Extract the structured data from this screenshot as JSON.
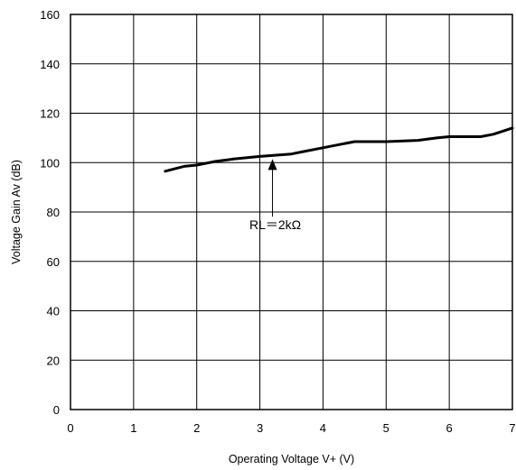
{
  "chart_data": {
    "type": "line",
    "title": "",
    "xlabel": "Operating Voltage  V+ (V)",
    "ylabel": "Voltage Gain  Av  (dB)",
    "xlim": [
      0,
      7
    ],
    "ylim": [
      0,
      160
    ],
    "x_ticks": [
      0,
      1,
      2,
      3,
      4,
      5,
      6,
      7
    ],
    "y_ticks": [
      0,
      20,
      40,
      60,
      80,
      100,
      120,
      140,
      160
    ],
    "grid": true,
    "series": [
      {
        "name": "",
        "color": "#000000",
        "x": [
          1.5,
          1.8,
          2.0,
          2.3,
          2.6,
          3.0,
          3.5,
          3.7,
          4.0,
          4.3,
          4.5,
          5.0,
          5.5,
          5.8,
          6.0,
          6.3,
          6.5,
          6.7,
          7.0
        ],
        "y": [
          96.5,
          98.5,
          99.0,
          100.5,
          101.5,
          102.5,
          103.5,
          104.5,
          106.0,
          107.5,
          108.5,
          108.5,
          109.0,
          110.0,
          110.5,
          110.5,
          110.5,
          111.5,
          114.0
        ]
      }
    ],
    "annotations": [
      {
        "text": "RL＝2kΩ",
        "arrow_x": 3.2,
        "arrow_y": 102.5,
        "label_x": 3.2,
        "label_y": 73
      }
    ]
  }
}
